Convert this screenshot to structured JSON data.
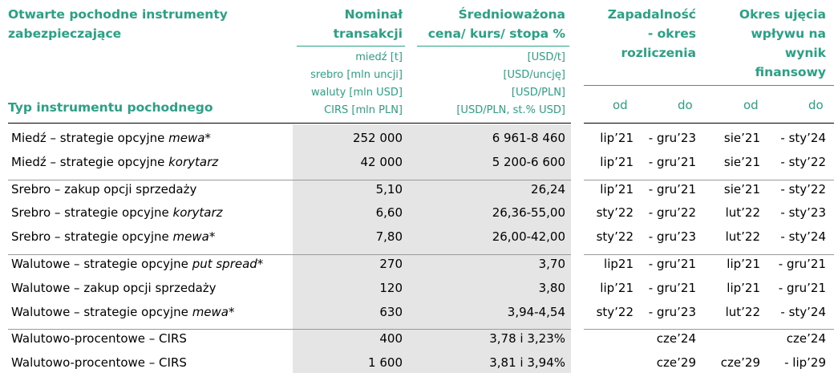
{
  "header": {
    "title": [
      "Otwarte pochodne instrumenty",
      "zabezpieczające"
    ],
    "type_label": "Typ instrumentu pochodnego",
    "nominal": [
      "Nominał",
      "transakcji"
    ],
    "nominal_units": [
      "miedź [t]",
      "srebro [mln uncji]",
      "waluty [mln USD]",
      "CIRS [mln PLN]"
    ],
    "price": [
      "Średnioważona",
      "cena/ kurs/ stopa %"
    ],
    "price_units": [
      "[USD/t]",
      "[USD/uncję]",
      "[USD/PLN]",
      "[USD/PLN, st.% USD]"
    ],
    "settlement": [
      "Zapadalność",
      "- okres",
      "rozliczenia"
    ],
    "effect": [
      "Okres ujęcia",
      "wpływu na",
      "wynik",
      "finansowy"
    ],
    "settlement_from": "od",
    "settlement_to": "do",
    "effect_from": "od",
    "effect_to": "do"
  },
  "table": {
    "groups": [
      {
        "rows": [
          {
            "name": "Miedź – strategie opcyjne ",
            "name_italic": "mewa*",
            "nominal": "252 000",
            "price": "6 961-8 460",
            "settlement_from": "lip’21",
            "settlement_to": "- gru’23",
            "effect_from": "sie’21",
            "effect_to": "- sty’24"
          },
          {
            "name": "Miedź – strategie opcyjne ",
            "name_italic": "korytarz",
            "nominal": "42 000",
            "price": "5 200-6 600",
            "settlement_from": "lip’21",
            "settlement_to": "- gru’21",
            "effect_from": "sie’21",
            "effect_to": "- sty’22"
          }
        ]
      },
      {
        "rows": [
          {
            "name": "Srebro – zakup opcji sprzedaży",
            "nominal": "5,10",
            "price": "26,24",
            "settlement_from": "lip’21",
            "settlement_to": "- gru’21",
            "effect_from": "sie’21",
            "effect_to": "- sty’22"
          },
          {
            "name": "Srebro – strategie opcyjne ",
            "name_italic": "korytarz",
            "nominal": "6,60",
            "price": "26,36-55,00",
            "settlement_from": "sty’22",
            "settlement_to": "- gru’22",
            "effect_from": "lut’22",
            "effect_to": "- sty’23"
          },
          {
            "name": "Srebro – strategie opcyjne ",
            "name_italic": "mewa*",
            "nominal": "7,80",
            "price": "26,00-42,00",
            "settlement_from": "sty’22",
            "settlement_to": "- gru’23",
            "effect_from": "lut’22",
            "effect_to": "- sty’24"
          }
        ]
      },
      {
        "rows": [
          {
            "name": "Walutowe – strategie opcyjne ",
            "name_italic": "put spread*",
            "nominal": "270",
            "price": "3,70",
            "settlement_from": "lip21",
            "settlement_to": "- gru’21",
            "effect_from": "lip’21",
            "effect_to": "- gru’21"
          },
          {
            "name": "Walutowe – zakup opcji sprzedaży",
            "nominal": "120",
            "price": "3,80",
            "settlement_from": "lip’21",
            "settlement_to": "- gru’21",
            "effect_from": "lip’21",
            "effect_to": "- gru’21"
          },
          {
            "name": "Walutowe – strategie opcyjne ",
            "name_italic": "mewa*",
            "nominal": "630",
            "price": "3,94-4,54",
            "settlement_from": "sty’22",
            "settlement_to": "- gru’23",
            "effect_from": "lut’22",
            "effect_to": "- sty’24"
          }
        ]
      },
      {
        "rows": [
          {
            "name": "Walutowo-procentowe – CIRS",
            "nominal": "400",
            "price": "3,78 i 3,23%",
            "settlement_to": "cze’24",
            "effect_to": "cze’24"
          },
          {
            "name": "Walutowo-procentowe – CIRS",
            "nominal": "1 600",
            "price": "3,81 i 3,94%",
            "settlement_to": "cze’29",
            "effect_from": "cze’29",
            "effect_to": "- lip’29"
          }
        ]
      }
    ]
  }
}
